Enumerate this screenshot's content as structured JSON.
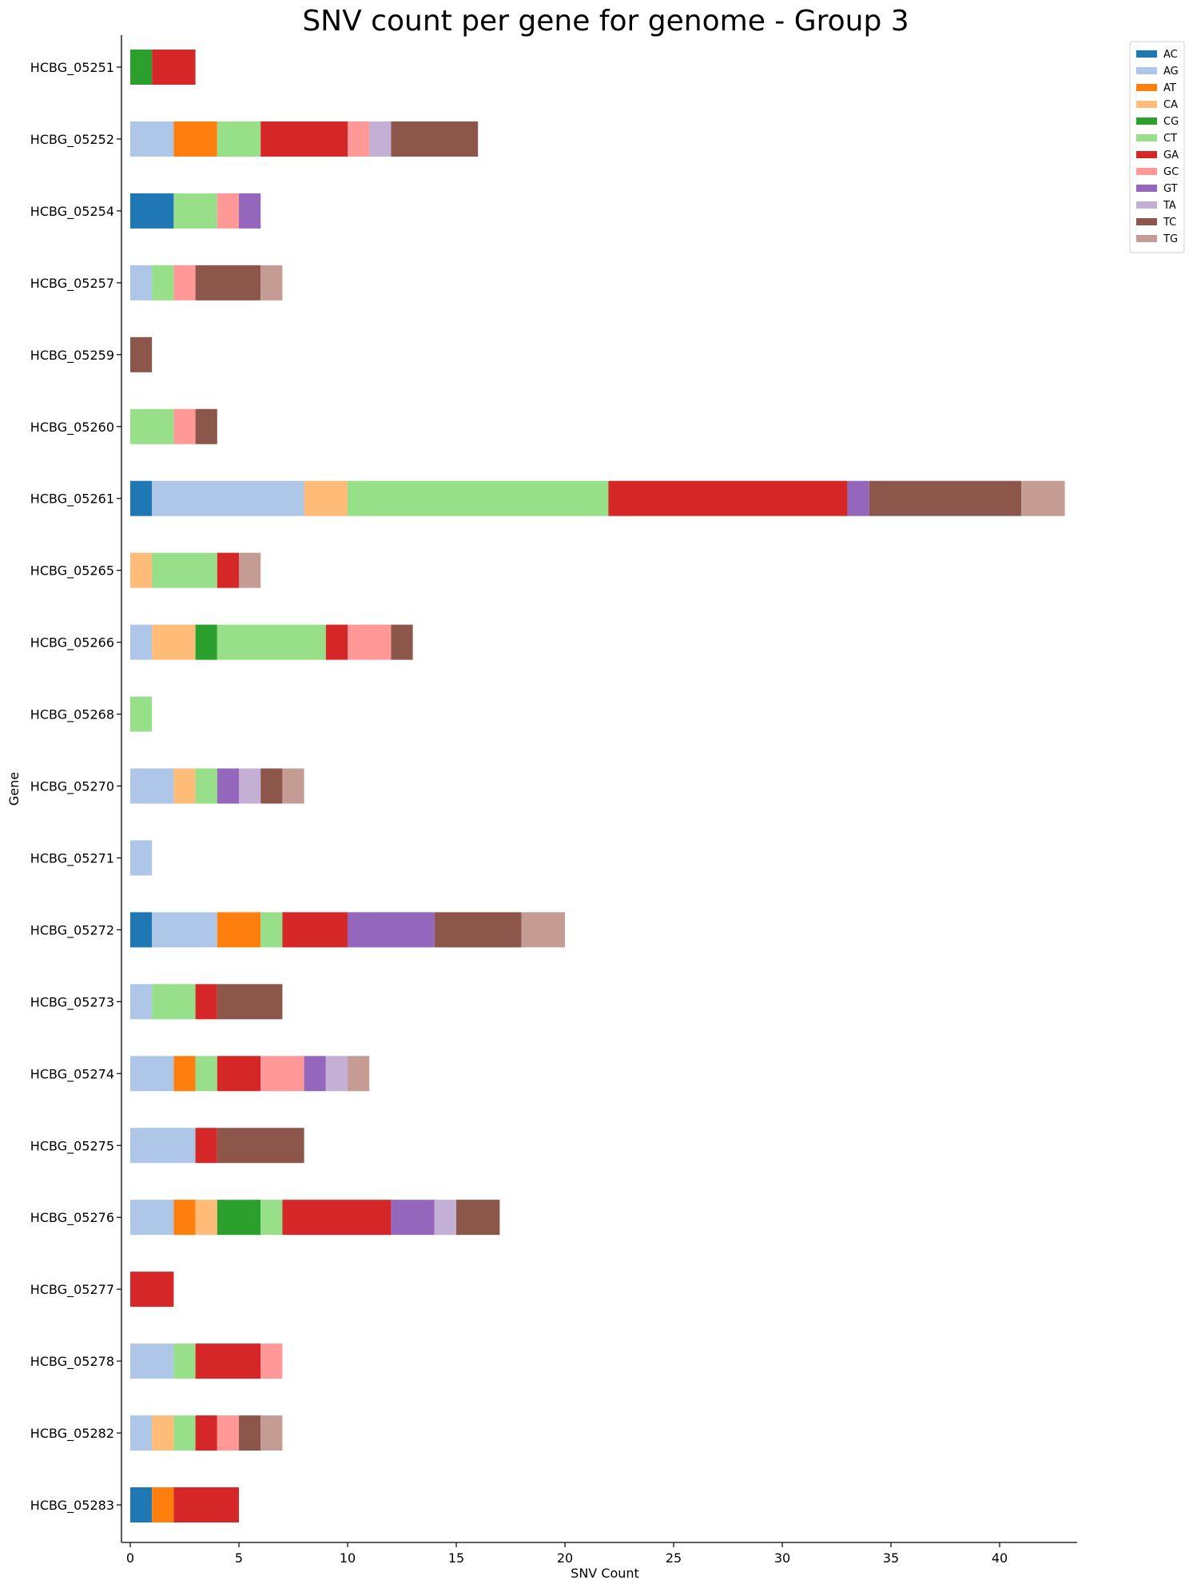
{
  "chart_data": {
    "type": "bar",
    "orientation": "horizontal",
    "stacked": true,
    "title": "SNV count per gene for genome - Group 3",
    "xlabel": "SNV Count",
    "ylabel": "Gene",
    "xlim": [
      0,
      43.5
    ],
    "xticks": [
      0,
      5,
      10,
      15,
      20,
      25,
      30,
      35,
      40
    ],
    "grid": false,
    "legend_position": "top-right (outside plot)",
    "categories": [
      "HCBG_05251",
      "HCBG_05252",
      "HCBG_05254",
      "HCBG_05257",
      "HCBG_05259",
      "HCBG_05260",
      "HCBG_05261",
      "HCBG_05265",
      "HCBG_05266",
      "HCBG_05268",
      "HCBG_05270",
      "HCBG_05271",
      "HCBG_05272",
      "HCBG_05273",
      "HCBG_05274",
      "HCBG_05275",
      "HCBG_05276",
      "HCBG_05277",
      "HCBG_05278",
      "HCBG_05282",
      "HCBG_05283"
    ],
    "series": [
      {
        "name": "AC",
        "color": "#1f77b4",
        "values": [
          0,
          0,
          2,
          0,
          0,
          0,
          1,
          0,
          0,
          0,
          0,
          0,
          1,
          0,
          0,
          0,
          0,
          0,
          0,
          0,
          1
        ]
      },
      {
        "name": "AG",
        "color": "#aec7e8",
        "values": [
          0,
          2,
          0,
          1,
          0,
          0,
          7,
          0,
          1,
          0,
          2,
          1,
          3,
          1,
          2,
          3,
          2,
          0,
          2,
          1,
          0
        ]
      },
      {
        "name": "AT",
        "color": "#ff7f0e",
        "values": [
          0,
          2,
          0,
          0,
          0,
          0,
          0,
          0,
          0,
          0,
          0,
          0,
          2,
          0,
          1,
          0,
          1,
          0,
          0,
          0,
          1
        ]
      },
      {
        "name": "CA",
        "color": "#ffbb78",
        "values": [
          0,
          0,
          0,
          0,
          0,
          0,
          2,
          1,
          2,
          0,
          1,
          0,
          0,
          0,
          0,
          0,
          1,
          0,
          0,
          1,
          0
        ]
      },
      {
        "name": "CG",
        "color": "#2ca02c",
        "values": [
          1,
          0,
          0,
          0,
          0,
          0,
          0,
          0,
          1,
          0,
          0,
          0,
          0,
          0,
          0,
          0,
          2,
          0,
          0,
          0,
          0
        ]
      },
      {
        "name": "CT",
        "color": "#98df8a",
        "values": [
          0,
          2,
          2,
          1,
          0,
          2,
          12,
          3,
          5,
          1,
          1,
          0,
          1,
          2,
          1,
          0,
          1,
          0,
          1,
          1,
          0
        ]
      },
      {
        "name": "GA",
        "color": "#d62728",
        "values": [
          2,
          4,
          0,
          0,
          0,
          0,
          11,
          1,
          1,
          0,
          0,
          0,
          3,
          1,
          2,
          1,
          5,
          2,
          3,
          1,
          3
        ]
      },
      {
        "name": "GC",
        "color": "#ff9896",
        "values": [
          0,
          1,
          1,
          1,
          0,
          1,
          0,
          0,
          2,
          0,
          0,
          0,
          0,
          0,
          2,
          0,
          0,
          0,
          1,
          1,
          0
        ]
      },
      {
        "name": "GT",
        "color": "#9467bd",
        "values": [
          0,
          0,
          1,
          0,
          0,
          0,
          1,
          0,
          0,
          0,
          1,
          0,
          4,
          0,
          1,
          0,
          2,
          0,
          0,
          0,
          0
        ]
      },
      {
        "name": "TA",
        "color": "#c5b0d5",
        "values": [
          0,
          1,
          0,
          0,
          0,
          0,
          0,
          0,
          0,
          0,
          1,
          0,
          0,
          0,
          1,
          0,
          1,
          0,
          0,
          0,
          0
        ]
      },
      {
        "name": "TC",
        "color": "#8c564b",
        "values": [
          0,
          4,
          0,
          3,
          1,
          1,
          7,
          0,
          1,
          0,
          1,
          0,
          4,
          3,
          0,
          4,
          2,
          0,
          0,
          1,
          0
        ]
      },
      {
        "name": "TG",
        "color": "#c49c94",
        "values": [
          0,
          0,
          0,
          1,
          0,
          0,
          2,
          1,
          0,
          0,
          1,
          0,
          2,
          0,
          1,
          0,
          0,
          0,
          0,
          1,
          0
        ]
      }
    ]
  }
}
